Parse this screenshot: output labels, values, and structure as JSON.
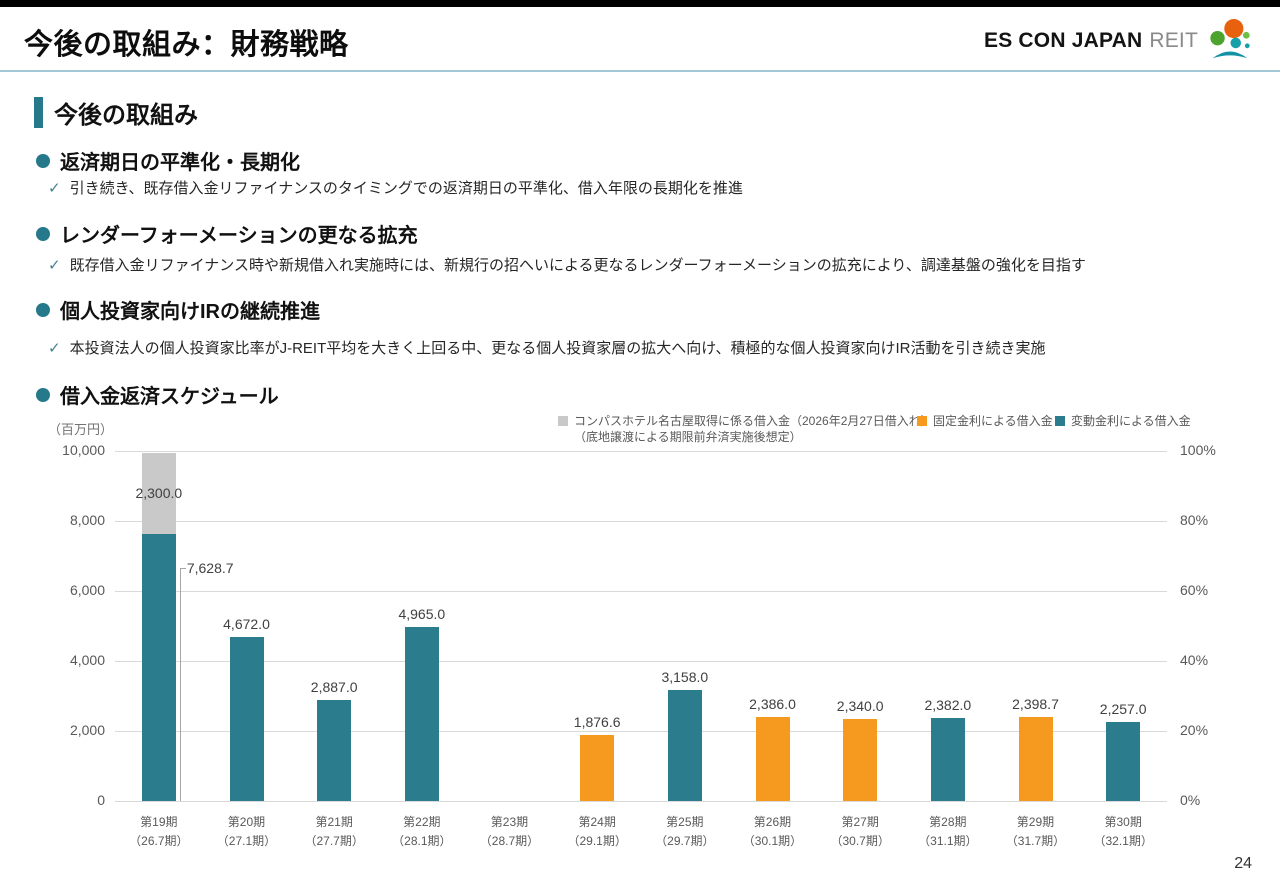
{
  "header": {
    "title": "今後の取組み：財務戦略",
    "logo_text_bold": "ES CON JAPAN",
    "logo_text_light": "REIT"
  },
  "section_title": "今後の取組み",
  "bullets": [
    {
      "heading": "返済期日の平準化・長期化",
      "check": "引き続き、既存借入金リファイナンスのタイミングでの返済期日の平準化、借入年限の長期化を推進"
    },
    {
      "heading": "レンダーフォーメーションの更なる拡充",
      "check": "既存借入金リファイナンス時や新規借入れ実施時には、新規行の招へいによる更なるレンダーフォーメーションの拡充により、調達基盤の強化を目指す"
    },
    {
      "heading": "個人投資家向けIRの継続推進",
      "check": "本投資法人の個人投資家比率がJ-REIT平均を大きく上回る中、更なる個人投資家層の拡大へ向け、積極的な個人投資家向けIR活動を引き続き実施"
    }
  ],
  "chart_heading": "借入金返済スケジュール",
  "page_number": "24",
  "chart_data": {
    "type": "bar",
    "stacked": true,
    "title": "借入金返済スケジュール",
    "unit_label": "（百万円）",
    "ylim": [
      0,
      10000
    ],
    "yticks_left": [
      "10,000",
      "8,000",
      "6,000",
      "4,000",
      "2,000",
      "0"
    ],
    "yticks_right": [
      "100%",
      "80%",
      "60%",
      "40%",
      "20%",
      "0%"
    ],
    "grid": true,
    "legend_position": "top",
    "series_colors": {
      "compass": "#C9C9C9",
      "fixed": "#F5991F",
      "variable": "#2B7D8D"
    },
    "legend": [
      {
        "series": "compass",
        "label": "コンパスホテル名古屋取得に係る借入金（2026年2月27日借入れ）",
        "label2": "（底地譲渡による期限前弁済実施後想定）"
      },
      {
        "series": "fixed",
        "label": "固定金利による借入金"
      },
      {
        "series": "variable",
        "label": "変動金利による借入金"
      }
    ],
    "bars": [
      {
        "cat": "第19期",
        "sub": "（26.7期）",
        "segments": [
          {
            "series": "variable",
            "value": 7628.7,
            "label": "7,628.7",
            "label_pos": "callout"
          },
          {
            "series": "compass",
            "value": 2300.0,
            "label": "2,300.0",
            "label_pos": "inside"
          }
        ]
      },
      {
        "cat": "第20期",
        "sub": "（27.1期）",
        "segments": [
          {
            "series": "variable",
            "value": 4672.0,
            "label": "4,672.0",
            "label_pos": "above"
          }
        ]
      },
      {
        "cat": "第21期",
        "sub": "（27.7期）",
        "segments": [
          {
            "series": "variable",
            "value": 2887.0,
            "label": "2,887.0",
            "label_pos": "above"
          }
        ]
      },
      {
        "cat": "第22期",
        "sub": "（28.1期）",
        "segments": [
          {
            "series": "variable",
            "value": 4965.0,
            "label": "4,965.0",
            "label_pos": "above"
          }
        ]
      },
      {
        "cat": "第23期",
        "sub": "（28.7期）",
        "segments": []
      },
      {
        "cat": "第24期",
        "sub": "（29.1期）",
        "segments": [
          {
            "series": "fixed",
            "value": 1876.6,
            "label": "1,876.6",
            "label_pos": "above"
          }
        ]
      },
      {
        "cat": "第25期",
        "sub": "（29.7期）",
        "segments": [
          {
            "series": "variable",
            "value": 3158.0,
            "label": "3,158.0",
            "label_pos": "above"
          }
        ]
      },
      {
        "cat": "第26期",
        "sub": "（30.1期）",
        "segments": [
          {
            "series": "fixed",
            "value": 2386.0,
            "label": "2,386.0",
            "label_pos": "above"
          }
        ]
      },
      {
        "cat": "第27期",
        "sub": "（30.7期）",
        "segments": [
          {
            "series": "fixed",
            "value": 2340.0,
            "label": "2,340.0",
            "label_pos": "above"
          }
        ]
      },
      {
        "cat": "第28期",
        "sub": "（31.1期）",
        "segments": [
          {
            "series": "variable",
            "value": 2382.0,
            "label": "2,382.0",
            "label_pos": "above"
          }
        ]
      },
      {
        "cat": "第29期",
        "sub": "（31.7期）",
        "segments": [
          {
            "series": "fixed",
            "value": 2398.7,
            "label": "2,398.7",
            "label_pos": "above"
          }
        ]
      },
      {
        "cat": "第30期",
        "sub": "（32.1期）",
        "segments": [
          {
            "series": "variable",
            "value": 2257.0,
            "label": "2,257.0",
            "label_pos": "above"
          }
        ]
      }
    ]
  }
}
